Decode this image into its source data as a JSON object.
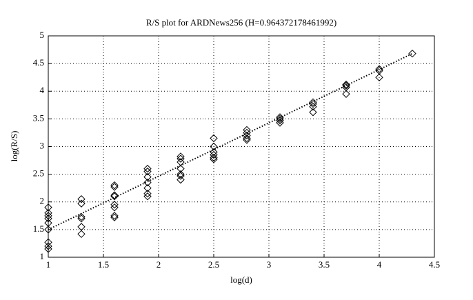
{
  "chart_data": {
    "type": "scatter",
    "title": "R/S plot for ARDNews256 (H=0.964372178461992)",
    "x_label": "log(d)",
    "y_label": "log(R/S)",
    "xlim": [
      1,
      4.5
    ],
    "ylim": [
      1,
      5
    ],
    "xticks": [
      1,
      1.5,
      2,
      2.5,
      3,
      3.5,
      4,
      4.5
    ],
    "yticks": [
      1,
      1.5,
      2,
      2.5,
      3,
      3.5,
      4,
      4.5,
      5
    ],
    "grid": true,
    "series": [
      {
        "marker": "diamond",
        "color": "#000000",
        "x": [
          1,
          1,
          1,
          1,
          1,
          1,
          1,
          1,
          1,
          1.3,
          1.3,
          1.3,
          1.3,
          1.3,
          1.3,
          1.6,
          1.6,
          1.6,
          1.6,
          1.6,
          1.6,
          1.6,
          1.6,
          1.9,
          1.9,
          1.9,
          1.9,
          1.9,
          1.9,
          1.9,
          2.2,
          2.2,
          2.2,
          2.2,
          2.2,
          2.2,
          2.2,
          2.5,
          2.5,
          2.5,
          2.5,
          2.5,
          2.5,
          2.8,
          2.8,
          2.8,
          2.8,
          2.8,
          3.1,
          3.1,
          3.1,
          3.1,
          3.4,
          3.4,
          3.4,
          3.4,
          3.7,
          3.7,
          3.7,
          3.7,
          4,
          4,
          4,
          4.3
        ],
        "values": [
          1.15,
          1.2,
          1.27,
          1.5,
          1.62,
          1.7,
          1.75,
          1.8,
          1.9,
          1.42,
          1.55,
          1.7,
          1.73,
          1.97,
          2.05,
          1.72,
          1.75,
          1.9,
          1.95,
          2.1,
          2.12,
          2.27,
          2.3,
          2.1,
          2.15,
          2.25,
          2.35,
          2.45,
          2.55,
          2.6,
          2.4,
          2.47,
          2.5,
          2.6,
          2.72,
          2.78,
          2.82,
          2.77,
          2.8,
          2.85,
          2.9,
          3.0,
          3.15,
          3.12,
          3.15,
          3.2,
          3.25,
          3.3,
          3.43,
          3.47,
          3.5,
          3.53,
          3.62,
          3.72,
          3.77,
          3.8,
          3.95,
          4.07,
          4.1,
          4.12,
          4.25,
          4.37,
          4.4,
          4.68
        ]
      },
      {
        "line_style": "dotted",
        "color": "#000000",
        "x": [
          1,
          4.3
        ],
        "values": [
          1.5,
          4.68
        ]
      }
    ]
  }
}
